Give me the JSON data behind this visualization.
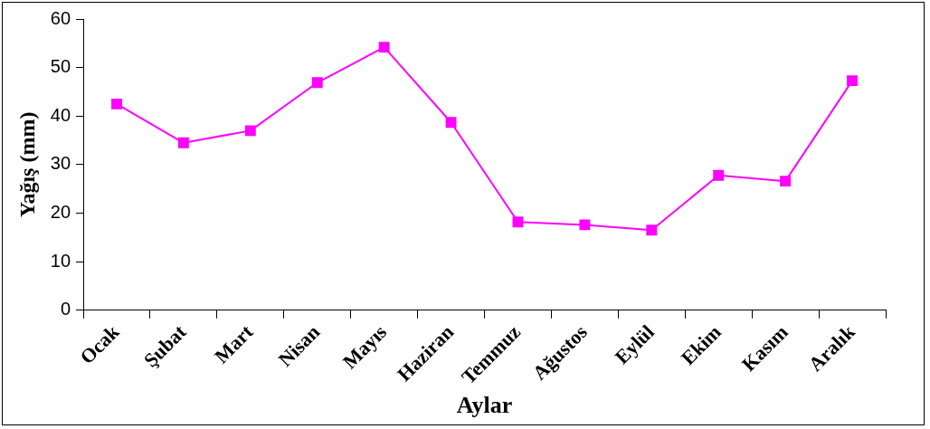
{
  "chart_data": {
    "type": "line",
    "xlabel": "Aylar",
    "ylabel": "Yağış (mm)",
    "categories": [
      "Ocak",
      "Şubat",
      "Mart",
      "Nisan",
      "Mayıs",
      "Haziran",
      "Temmuz",
      "Ağustos",
      "Eylül",
      "Ekim",
      "Kasım",
      "Aralık"
    ],
    "series": [
      {
        "color": "#ff00ff",
        "values": [
          42.5,
          34.5,
          37.0,
          46.9,
          54.2,
          38.7,
          18.2,
          17.6,
          16.5,
          27.8,
          26.6,
          47.3
        ]
      }
    ],
    "ylim": [
      0,
      60
    ],
    "yticks": [
      0,
      10,
      20,
      30,
      40,
      50,
      60
    ],
    "grid": false,
    "legend": false,
    "marker": "square",
    "line_style": "solid"
  }
}
